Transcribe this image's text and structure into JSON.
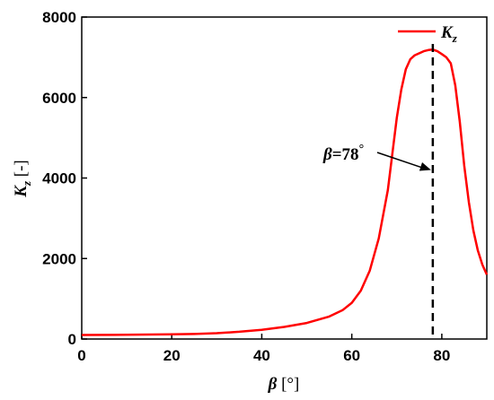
{
  "chart_data": {
    "type": "line",
    "xlabel_symbol": "β",
    "xlabel_unit": " [°]",
    "ylabel_symbol": "K",
    "ylabel_sub": "z",
    "ylabel_unit": " [-]",
    "xlim": [
      0,
      90
    ],
    "ylim": [
      0,
      8000
    ],
    "x_ticks": [
      0,
      20,
      40,
      60,
      80
    ],
    "y_ticks": [
      0,
      2000,
      4000,
      6000,
      8000
    ],
    "grid": false,
    "legend_position": "top-right",
    "series": [
      {
        "name": "K",
        "name_sub": "z",
        "color": "#ff0000",
        "x": [
          0,
          10,
          20,
          25,
          30,
          35,
          40,
          45,
          50,
          55,
          58,
          60,
          62,
          64,
          66,
          68,
          70,
          71,
          72,
          73,
          74,
          75,
          76,
          77,
          78,
          79,
          80,
          81,
          82,
          83,
          84,
          85,
          86,
          87,
          88,
          89,
          90
        ],
        "y": [
          100,
          105,
          115,
          125,
          145,
          180,
          230,
          300,
          400,
          560,
          720,
          900,
          1200,
          1700,
          2500,
          3700,
          5500,
          6200,
          6700,
          6950,
          7050,
          7100,
          7150,
          7180,
          7190,
          7150,
          7080,
          7000,
          6850,
          6300,
          5400,
          4300,
          3400,
          2700,
          2200,
          1850,
          1600
        ]
      }
    ],
    "annotations": [
      {
        "symbol": "β",
        "text": "=78",
        "degree": "°",
        "x": 78,
        "y": 4200,
        "vline_x": 78
      }
    ]
  }
}
